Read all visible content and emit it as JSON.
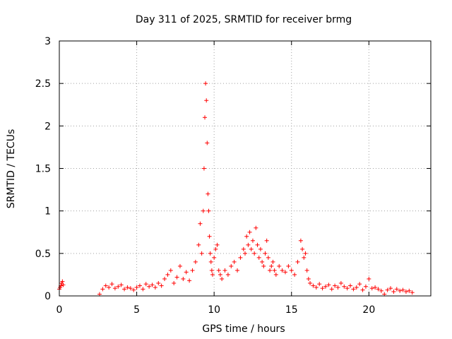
{
  "chart_data": {
    "type": "scatter",
    "title": "Day 311 of 2025, SRMTID for receiver brmg",
    "xlabel": "GPS time / hours",
    "ylabel": "SRMTID / TECUs",
    "xlim": [
      0,
      24
    ],
    "ylim": [
      0,
      3
    ],
    "xticks": [
      0,
      5,
      10,
      15,
      20
    ],
    "yticks": [
      0,
      0.5,
      1,
      1.5,
      2,
      2.5,
      3
    ],
    "xtick_labels": [
      "0",
      "5",
      "10",
      "15",
      "20"
    ],
    "ytick_labels": [
      "0",
      "0.5",
      "1",
      "1.5",
      "2",
      "2.5",
      "3"
    ],
    "grid": true,
    "marker": "+",
    "color": "#ff0000",
    "series": [
      {
        "name": "SRMTID",
        "x": [
          0.0,
          0.05,
          0.1,
          0.15,
          0.2,
          0.25,
          2.6,
          2.8,
          3.0,
          3.2,
          3.4,
          3.6,
          3.8,
          4.0,
          4.2,
          4.4,
          4.6,
          4.8,
          5.0,
          5.2,
          5.4,
          5.6,
          5.8,
          6.0,
          6.2,
          6.4,
          6.6,
          6.8,
          7.0,
          7.2,
          7.4,
          7.6,
          7.8,
          8.0,
          8.2,
          8.4,
          8.6,
          8.8,
          9.0,
          9.1,
          9.2,
          9.3,
          9.35,
          9.4,
          9.45,
          9.5,
          9.55,
          9.6,
          9.65,
          9.7,
          9.75,
          9.8,
          9.85,
          9.9,
          10.0,
          10.1,
          10.2,
          10.3,
          10.4,
          10.5,
          10.7,
          10.9,
          11.1,
          11.3,
          11.5,
          11.7,
          11.9,
          12.0,
          12.1,
          12.2,
          12.3,
          12.4,
          12.5,
          12.6,
          12.7,
          12.8,
          12.9,
          13.0,
          13.1,
          13.2,
          13.3,
          13.4,
          13.5,
          13.6,
          13.7,
          13.8,
          13.9,
          14.0,
          14.2,
          14.4,
          14.6,
          14.8,
          15.0,
          15.2,
          15.4,
          15.6,
          15.7,
          15.8,
          15.9,
          16.0,
          16.1,
          16.2,
          16.4,
          16.6,
          16.8,
          17.0,
          17.2,
          17.4,
          17.6,
          17.8,
          18.0,
          18.2,
          18.4,
          18.6,
          18.8,
          19.0,
          19.2,
          19.4,
          19.6,
          19.8,
          20.0,
          20.2,
          20.4,
          20.6,
          20.8,
          21.0,
          21.2,
          21.4,
          21.6,
          21.8,
          22.0,
          22.2,
          22.4,
          22.6,
          22.8
        ],
        "y": [
          0.08,
          0.1,
          0.12,
          0.15,
          0.17,
          0.13,
          0.02,
          0.08,
          0.12,
          0.1,
          0.14,
          0.09,
          0.11,
          0.13,
          0.08,
          0.1,
          0.09,
          0.07,
          0.1,
          0.12,
          0.08,
          0.14,
          0.11,
          0.13,
          0.1,
          0.15,
          0.12,
          0.2,
          0.25,
          0.3,
          0.15,
          0.22,
          0.35,
          0.2,
          0.28,
          0.18,
          0.3,
          0.4,
          0.6,
          0.85,
          0.5,
          1.0,
          1.5,
          2.1,
          2.5,
          2.3,
          1.8,
          1.2,
          1.0,
          0.7,
          0.5,
          0.4,
          0.3,
          0.25,
          0.45,
          0.55,
          0.6,
          0.3,
          0.25,
          0.2,
          0.3,
          0.25,
          0.35,
          0.4,
          0.3,
          0.45,
          0.55,
          0.5,
          0.7,
          0.6,
          0.75,
          0.55,
          0.65,
          0.5,
          0.8,
          0.6,
          0.45,
          0.55,
          0.4,
          0.35,
          0.5,
          0.65,
          0.45,
          0.3,
          0.35,
          0.4,
          0.3,
          0.25,
          0.35,
          0.3,
          0.28,
          0.35,
          0.3,
          0.25,
          0.4,
          0.65,
          0.55,
          0.45,
          0.5,
          0.3,
          0.2,
          0.15,
          0.12,
          0.1,
          0.14,
          0.09,
          0.11,
          0.13,
          0.08,
          0.12,
          0.1,
          0.15,
          0.11,
          0.09,
          0.12,
          0.08,
          0.1,
          0.14,
          0.07,
          0.11,
          0.2,
          0.09,
          0.1,
          0.08,
          0.06,
          0.02,
          0.07,
          0.09,
          0.05,
          0.08,
          0.06,
          0.07,
          0.05,
          0.06,
          0.04
        ]
      }
    ]
  }
}
